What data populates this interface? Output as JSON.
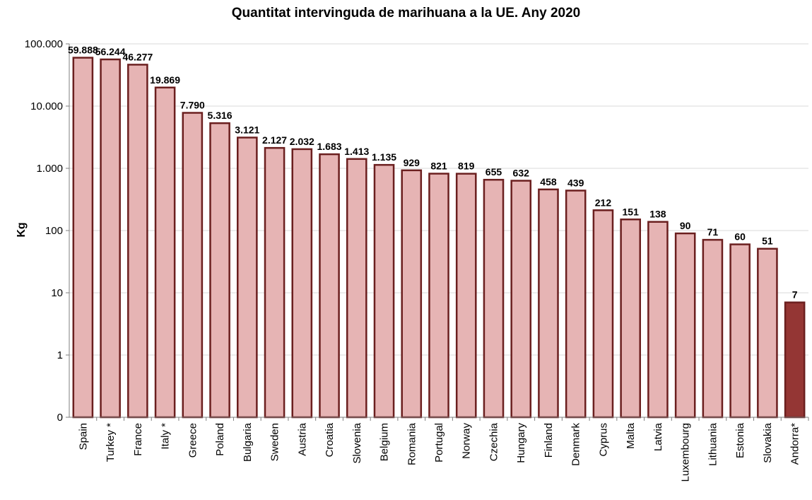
{
  "chart_data": {
    "type": "bar",
    "title": "Quantitat intervinguda de marihuana a la UE. Any 2020",
    "ylabel": "Kg",
    "xlabel": "",
    "yscale": "log",
    "ylim": [
      0,
      100000
    ],
    "y_ticks": [
      {
        "value": 0,
        "label": "0"
      },
      {
        "value": 1,
        "label": "1"
      },
      {
        "value": 10,
        "label": "10"
      },
      {
        "value": 100,
        "label": "100"
      },
      {
        "value": 1000,
        "label": "1.000"
      },
      {
        "value": 10000,
        "label": "10.000"
      },
      {
        "value": 100000,
        "label": "100.000"
      }
    ],
    "grid": true,
    "categories": [
      "Spain",
      "Turkey *",
      "France",
      "Italy *",
      "Greece",
      "Poland",
      "Bulgaria",
      "Sweden",
      "Austria",
      "Croatia",
      "Slovenia",
      "Belgium",
      "Romania",
      "Portugal",
      "Norway",
      "Czechia",
      "Hungary",
      "Finland",
      "Denmark",
      "Cyprus",
      "Malta",
      "Latvia",
      "Luxembourg",
      "Lithuania",
      "Estonia",
      "Slovakia",
      "Andorra*"
    ],
    "values": [
      59888,
      56244,
      46277,
      19869,
      7790,
      5316,
      3121,
      2127,
      2032,
      1683,
      1413,
      1135,
      929,
      821,
      819,
      655,
      632,
      458,
      439,
      212,
      151,
      138,
      90,
      71,
      60,
      51,
      7
    ],
    "value_labels": [
      "59.888",
      "56.244",
      "46.277",
      "19.869",
      "7.790",
      "5.316",
      "3.121",
      "2.127",
      "2.032",
      "1.683",
      "1.413",
      "1.135",
      "929",
      "821",
      "819",
      "655",
      "632",
      "458",
      "439",
      "212",
      "151",
      "138",
      "90",
      "71",
      "60",
      "51",
      "7"
    ],
    "colors": {
      "bar_fill": "#e6b4b4",
      "bar_stroke": "#6b1f1f",
      "highlight_fill": "#943634",
      "highlight_category": "Andorra*",
      "grid": "#d9d9d9",
      "axis": "#7f7f7f"
    }
  }
}
